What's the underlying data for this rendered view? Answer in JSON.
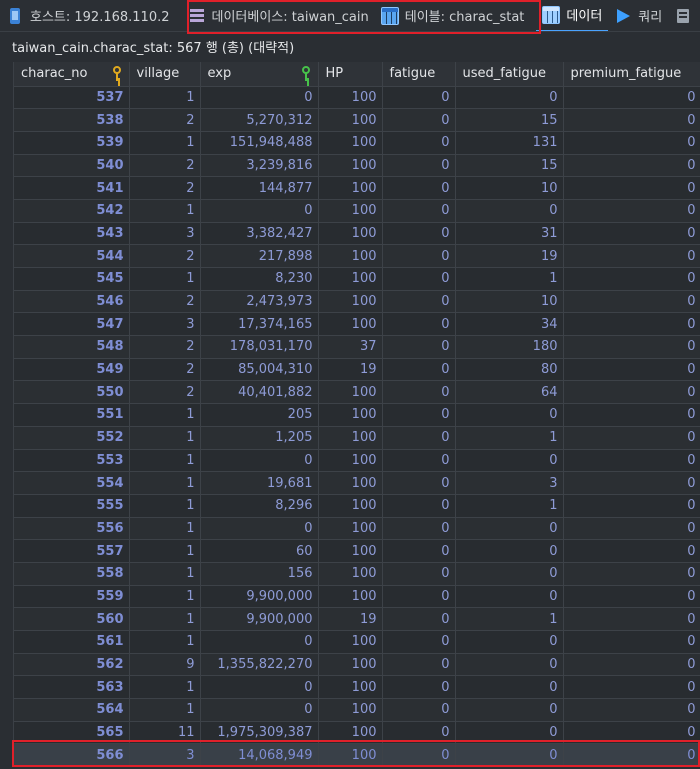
{
  "tabs": [
    {
      "icon": "host-icon",
      "label": "호스트: 192.168.110.2"
    },
    {
      "icon": "database-icon",
      "label": "데이터베이스: taiwan_cain"
    },
    {
      "icon": "table-icon",
      "label": "테이블: charac_stat"
    },
    {
      "icon": "data-grid-icon",
      "label": "데이터",
      "active": true
    },
    {
      "icon": "query-play-icon",
      "label": "쿼리"
    },
    {
      "icon": "more-icon",
      "label": ""
    }
  ],
  "status_text": "taiwan_cain.charac_stat: 567 행 (총) (대략적)",
  "columns": [
    "charac_no",
    "village",
    "exp",
    "HP",
    "fatigue",
    "used_fatigue",
    "premium_fatigue"
  ],
  "rows": [
    [
      "537",
      "1",
      "0",
      "100",
      "0",
      "0",
      "0"
    ],
    [
      "538",
      "2",
      "5,270,312",
      "100",
      "0",
      "15",
      "0"
    ],
    [
      "539",
      "1",
      "151,948,488",
      "100",
      "0",
      "131",
      "0"
    ],
    [
      "540",
      "2",
      "3,239,816",
      "100",
      "0",
      "15",
      "0"
    ],
    [
      "541",
      "2",
      "144,877",
      "100",
      "0",
      "10",
      "0"
    ],
    [
      "542",
      "1",
      "0",
      "100",
      "0",
      "0",
      "0"
    ],
    [
      "543",
      "3",
      "3,382,427",
      "100",
      "0",
      "31",
      "0"
    ],
    [
      "544",
      "2",
      "217,898",
      "100",
      "0",
      "19",
      "0"
    ],
    [
      "545",
      "1",
      "8,230",
      "100",
      "0",
      "1",
      "0"
    ],
    [
      "546",
      "2",
      "2,473,973",
      "100",
      "0",
      "10",
      "0"
    ],
    [
      "547",
      "3",
      "17,374,165",
      "100",
      "0",
      "34",
      "0"
    ],
    [
      "548",
      "2",
      "178,031,170",
      "37",
      "0",
      "180",
      "0"
    ],
    [
      "549",
      "2",
      "85,004,310",
      "19",
      "0",
      "80",
      "0"
    ],
    [
      "550",
      "2",
      "40,401,882",
      "100",
      "0",
      "64",
      "0"
    ],
    [
      "551",
      "1",
      "205",
      "100",
      "0",
      "0",
      "0"
    ],
    [
      "552",
      "1",
      "1,205",
      "100",
      "0",
      "1",
      "0"
    ],
    [
      "553",
      "1",
      "0",
      "100",
      "0",
      "0",
      "0"
    ],
    [
      "554",
      "1",
      "19,681",
      "100",
      "0",
      "3",
      "0"
    ],
    [
      "555",
      "1",
      "8,296",
      "100",
      "0",
      "1",
      "0"
    ],
    [
      "556",
      "1",
      "0",
      "100",
      "0",
      "0",
      "0"
    ],
    [
      "557",
      "1",
      "60",
      "100",
      "0",
      "0",
      "0"
    ],
    [
      "558",
      "1",
      "156",
      "100",
      "0",
      "0",
      "0"
    ],
    [
      "559",
      "1",
      "9,900,000",
      "100",
      "0",
      "0",
      "0"
    ],
    [
      "560",
      "1",
      "9,900,000",
      "19",
      "0",
      "1",
      "0"
    ],
    [
      "561",
      "1",
      "0",
      "100",
      "0",
      "0",
      "0"
    ],
    [
      "562",
      "9",
      "1,355,822,270",
      "100",
      "0",
      "0",
      "0"
    ],
    [
      "563",
      "1",
      "0",
      "100",
      "0",
      "0",
      "0"
    ],
    [
      "564",
      "1",
      "0",
      "100",
      "0",
      "0",
      "0"
    ],
    [
      "565",
      "11",
      "1,975,309,387",
      "100",
      "0",
      "0",
      "0"
    ],
    [
      "566",
      "3",
      "14,068,949",
      "100",
      "0",
      "0",
      "0"
    ]
  ],
  "selected_row": "566",
  "colors": {
    "highlight": "#e0202a",
    "accent": "#4aa3ff",
    "primary_key": "#e0a91f",
    "index_key": "#47c24a"
  }
}
